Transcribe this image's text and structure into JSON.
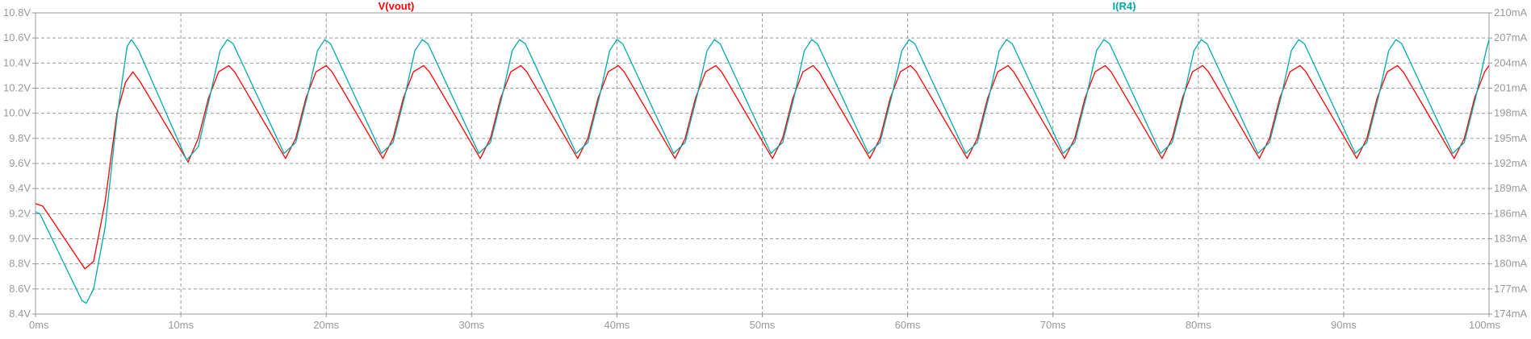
{
  "chart_data": {
    "type": "line",
    "title": "",
    "grid": true,
    "x": {
      "label": "",
      "unit": "ms",
      "lim": [
        0,
        100
      ],
      "ticks": [
        0,
        10,
        20,
        30,
        40,
        50,
        60,
        70,
        80,
        90,
        100
      ],
      "tick_labels": [
        "0ms",
        "10ms",
        "20ms",
        "30ms",
        "40ms",
        "50ms",
        "60ms",
        "70ms",
        "80ms",
        "90ms",
        "100ms"
      ]
    },
    "y_left": {
      "label": "",
      "unit": "V",
      "lim": [
        8.4,
        10.8
      ],
      "ticks": [
        8.4,
        8.6,
        8.8,
        9.0,
        9.2,
        9.4,
        9.6,
        9.8,
        10.0,
        10.2,
        10.4,
        10.6,
        10.8
      ],
      "tick_labels": [
        "8.4V",
        "8.6V",
        "8.8V",
        "9.0V",
        "9.2V",
        "9.4V",
        "9.6V",
        "9.8V",
        "10.0V",
        "10.2V",
        "10.4V",
        "10.6V",
        "10.8V"
      ]
    },
    "y_right": {
      "label": "",
      "unit": "mA",
      "lim": [
        174,
        210
      ],
      "ticks": [
        174,
        177,
        180,
        183,
        186,
        189,
        192,
        195,
        198,
        201,
        204,
        207,
        210
      ],
      "tick_labels": [
        "174mA",
        "177mA",
        "180mA",
        "183mA",
        "186mA",
        "189mA",
        "192mA",
        "195mA",
        "198mA",
        "201mA",
        "204mA",
        "207mA",
        "210mA"
      ]
    },
    "series": [
      {
        "name": "V(vout)",
        "axis": "left",
        "color": "#ff0000",
        "x": [
          0,
          0.5,
          3.4,
          4.0,
          4.8,
          5.6,
          6.2,
          6.7,
          7.2,
          10.5,
          11.2,
          11.9,
          12.6,
          13.3,
          13.7,
          17.2,
          17.9,
          18.6,
          19.3,
          20.0,
          20.4,
          23.9,
          24.6,
          25.3,
          26.0,
          26.7,
          27.1,
          30.6,
          31.3,
          32.0,
          32.7,
          33.4,
          33.8,
          37.3,
          38.0,
          38.7,
          39.4,
          40.1,
          40.5,
          44.0,
          44.7,
          45.4,
          46.1,
          46.8,
          47.2,
          50.7,
          51.4,
          52.1,
          52.8,
          53.5,
          53.9,
          57.4,
          58.1,
          58.8,
          59.5,
          60.2,
          60.6,
          64.1,
          64.8,
          65.5,
          66.2,
          66.9,
          67.3,
          70.8,
          71.5,
          72.2,
          72.9,
          73.6,
          74.0,
          77.5,
          78.2,
          78.9,
          79.6,
          80.3,
          80.7,
          84.2,
          84.9,
          85.6,
          86.3,
          87.0,
          87.4,
          90.9,
          91.6,
          92.3,
          93.0,
          93.7,
          94.1,
          97.6,
          98.3,
          99.0,
          99.7,
          100
        ],
        "y": [
          9.28,
          9.26,
          8.76,
          8.82,
          9.3,
          10.0,
          10.25,
          10.33,
          10.25,
          9.61,
          9.8,
          10.12,
          10.33,
          10.38,
          10.33,
          9.64,
          9.8,
          10.12,
          10.33,
          10.38,
          10.33,
          9.64,
          9.8,
          10.12,
          10.33,
          10.38,
          10.33,
          9.64,
          9.8,
          10.12,
          10.33,
          10.38,
          10.33,
          9.64,
          9.8,
          10.12,
          10.33,
          10.38,
          10.33,
          9.64,
          9.8,
          10.12,
          10.33,
          10.38,
          10.33,
          9.64,
          9.8,
          10.12,
          10.33,
          10.38,
          10.33,
          9.64,
          9.8,
          10.12,
          10.33,
          10.38,
          10.33,
          9.64,
          9.8,
          10.12,
          10.33,
          10.38,
          10.33,
          9.64,
          9.8,
          10.12,
          10.33,
          10.38,
          10.33,
          9.64,
          9.8,
          10.12,
          10.33,
          10.38,
          10.33,
          9.64,
          9.8,
          10.12,
          10.33,
          10.38,
          10.33,
          9.64,
          9.8,
          10.12,
          10.33,
          10.38,
          10.33,
          9.64,
          9.8,
          10.12,
          10.33,
          10.38
        ]
      },
      {
        "name": "I(R4)",
        "axis": "right",
        "color": "#00aaaa",
        "x": [
          0,
          0.3,
          3.2,
          3.5,
          4.0,
          4.8,
          5.6,
          6.3,
          6.6,
          7.1,
          10.4,
          11.2,
          12.0,
          12.7,
          13.2,
          13.6,
          17.1,
          17.9,
          18.7,
          19.4,
          19.9,
          20.3,
          23.8,
          24.6,
          25.4,
          26.1,
          26.6,
          27.0,
          30.5,
          31.3,
          32.1,
          32.8,
          33.3,
          33.7,
          37.2,
          38.0,
          38.8,
          39.5,
          40.0,
          40.4,
          43.9,
          44.7,
          45.5,
          46.2,
          46.7,
          47.1,
          50.6,
          51.4,
          52.2,
          52.9,
          53.4,
          53.8,
          57.3,
          58.1,
          58.9,
          59.6,
          60.1,
          60.5,
          64.0,
          64.8,
          65.6,
          66.3,
          66.8,
          67.2,
          70.7,
          71.5,
          72.3,
          73.0,
          73.5,
          73.9,
          77.4,
          78.2,
          79.0,
          79.7,
          80.2,
          80.6,
          84.1,
          84.9,
          85.7,
          86.4,
          86.9,
          87.3,
          90.8,
          91.6,
          92.4,
          93.1,
          93.6,
          94.0,
          97.5,
          98.3,
          99.1,
          99.8,
          100
        ],
        "y": [
          186.2,
          186.0,
          175.6,
          175.3,
          177.0,
          184.5,
          197.5,
          206.0,
          206.8,
          205.5,
          192.4,
          194.0,
          200.0,
          205.5,
          206.8,
          206.3,
          193.2,
          194.5,
          200.0,
          205.5,
          206.8,
          206.3,
          193.2,
          194.5,
          200.0,
          205.5,
          206.8,
          206.3,
          193.2,
          194.5,
          200.0,
          205.5,
          206.8,
          206.3,
          193.2,
          194.5,
          200.0,
          205.5,
          206.8,
          206.3,
          193.2,
          194.5,
          200.0,
          205.5,
          206.8,
          206.3,
          193.2,
          194.5,
          200.0,
          205.5,
          206.8,
          206.3,
          193.2,
          194.5,
          200.0,
          205.5,
          206.8,
          206.3,
          193.2,
          194.5,
          200.0,
          205.5,
          206.8,
          206.3,
          193.2,
          194.5,
          200.0,
          205.5,
          206.8,
          206.3,
          193.2,
          194.5,
          200.0,
          205.5,
          206.8,
          206.3,
          193.2,
          194.5,
          200.0,
          205.5,
          206.8,
          206.3,
          193.2,
          194.5,
          200.0,
          205.5,
          206.8,
          206.3,
          193.2,
          194.5,
          200.0,
          205.5,
          206.8
        ]
      }
    ]
  },
  "colors": {
    "background": "#ffffff",
    "axis": "#999999",
    "grid": "#999999",
    "vout": "#ff0000",
    "ir4": "#00aaaa"
  }
}
